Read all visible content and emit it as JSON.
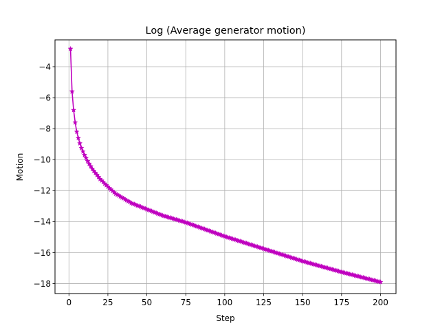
{
  "chart_data": {
    "type": "line",
    "title": "Log (Average generator motion)",
    "xlabel": "Step",
    "ylabel": "Motion",
    "xlim": [
      -8.95,
      209.95
    ],
    "ylim": [
      -18.64,
      -2.27
    ],
    "xticks": [
      0,
      25,
      50,
      75,
      100,
      125,
      150,
      175,
      200
    ],
    "yticks": [
      -18,
      -16,
      -14,
      -12,
      -10,
      -8,
      -6,
      -4
    ],
    "grid": true,
    "legend": "none",
    "series": [
      {
        "color": "#bf00bf",
        "marker": "star",
        "x_start": 1,
        "x_end": 200,
        "anchor_points": [
          [
            1,
            -2.85
          ],
          [
            2,
            -5.6
          ],
          [
            3,
            -6.8
          ],
          [
            4,
            -7.6
          ],
          [
            5,
            -8.2
          ],
          [
            6,
            -8.6
          ],
          [
            7,
            -8.95
          ],
          [
            8,
            -9.25
          ],
          [
            10,
            -9.7
          ],
          [
            12,
            -10.1
          ],
          [
            15,
            -10.6
          ],
          [
            20,
            -11.25
          ],
          [
            25,
            -11.75
          ],
          [
            30,
            -12.2
          ],
          [
            40,
            -12.8
          ],
          [
            50,
            -13.2
          ],
          [
            60,
            -13.6
          ],
          [
            75,
            -14.05
          ],
          [
            100,
            -14.95
          ],
          [
            125,
            -15.75
          ],
          [
            150,
            -16.55
          ],
          [
            175,
            -17.25
          ],
          [
            200,
            -17.9
          ]
        ]
      }
    ]
  }
}
